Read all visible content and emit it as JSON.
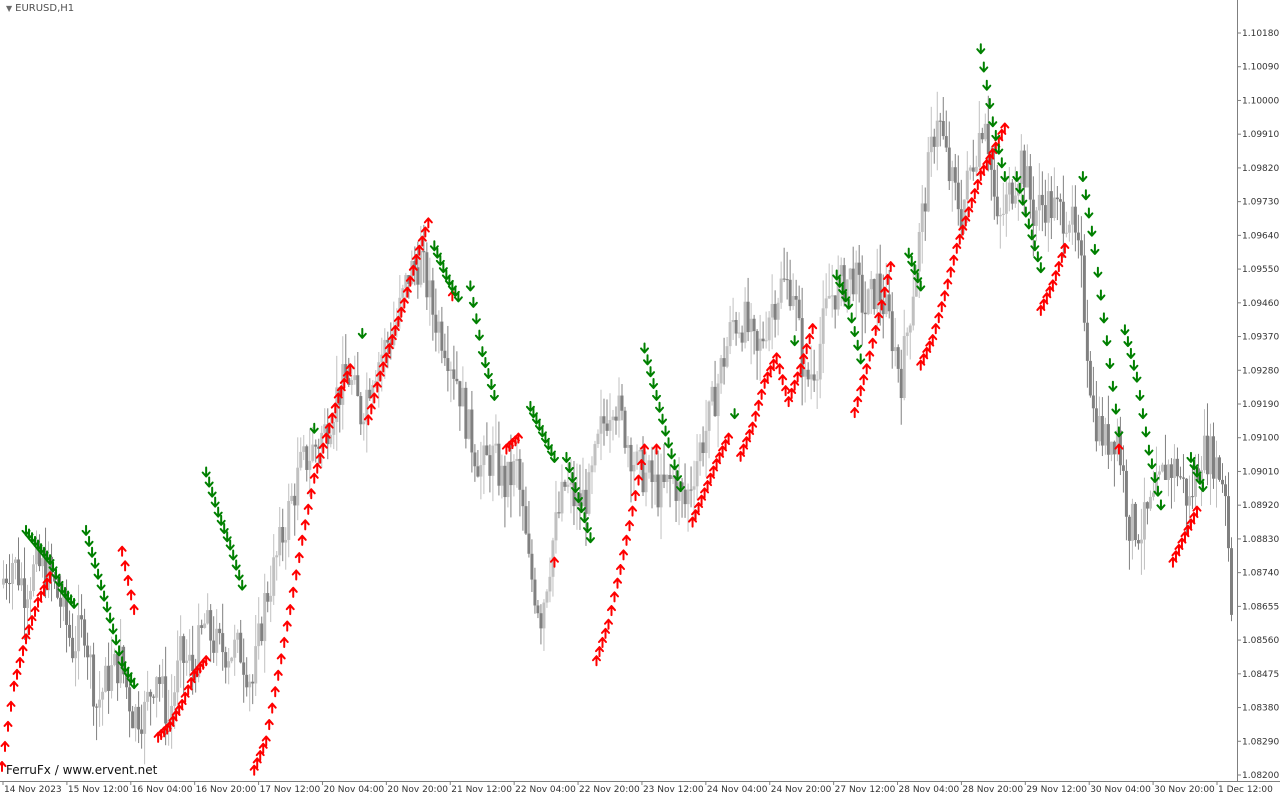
{
  "window": {
    "symbol_label": "EURUSD,H1",
    "watermark": "FerruFx / www.ervent.net"
  },
  "colors": {
    "background": "#ffffff",
    "bull_candle": "#c0c0c0",
    "bear_candle": "#808080",
    "buy_arrow": "#ff0000",
    "sell_arrow": "#008000",
    "axis": "#7f7f7f"
  },
  "chart_data": {
    "type": "candlestick",
    "symbol": "EURUSD",
    "timeframe": "H1",
    "y_axis": {
      "range": [
        1.082,
        1.1025
      ],
      "ticks": [
        "1.10180",
        "1.10090",
        "1.10000",
        "1.09910",
        "1.09820",
        "1.09730",
        "1.09640",
        "1.09550",
        "1.09460",
        "1.09370",
        "1.09280",
        "1.09190",
        "1.09100",
        "1.09010",
        "1.08920",
        "1.08830",
        "1.08740",
        "1.08655",
        "1.08560",
        "1.08475",
        "1.08380",
        "1.08290",
        "1.08200"
      ]
    },
    "x_axis": {
      "ticks": [
        "14 Nov 2023",
        "15 Nov 12:00",
        "16 Nov 04:00",
        "16 Nov 20:00",
        "17 Nov 12:00",
        "20 Nov 04:00",
        "20 Nov 20:00",
        "21 Nov 12:00",
        "22 Nov 04:00",
        "22 Nov 20:00",
        "23 Nov 12:00",
        "24 Nov 04:00",
        "24 Nov 20:00",
        "27 Nov 12:00",
        "28 Nov 04:00",
        "28 Nov 20:00",
        "29 Nov 12:00",
        "30 Nov 04:00",
        "30 Nov 20:00",
        "1 Dec 12:00"
      ]
    },
    "close_path": [
      [
        0,
        1.0873
      ],
      [
        4,
        1.088
      ],
      [
        8,
        1.0872
      ],
      [
        12,
        1.0878
      ],
      [
        16,
        1.0876
      ],
      [
        20,
        1.0868
      ],
      [
        24,
        1.0856
      ],
      [
        28,
        1.0862
      ],
      [
        32,
        1.084
      ],
      [
        36,
        1.0848
      ],
      [
        40,
        1.0852
      ],
      [
        44,
        1.0838
      ],
      [
        48,
        1.0838
      ],
      [
        52,
        1.085
      ],
      [
        56,
        1.0836
      ],
      [
        60,
        1.0853
      ],
      [
        64,
        1.085
      ],
      [
        68,
        1.0862
      ],
      [
        72,
        1.0856
      ],
      [
        76,
        1.0855
      ],
      [
        80,
        1.0855
      ],
      [
        84,
        1.0846
      ],
      [
        88,
        1.0868
      ],
      [
        92,
        1.088
      ],
      [
        96,
        1.0893
      ],
      [
        100,
        1.0905
      ],
      [
        104,
        1.091
      ],
      [
        108,
        1.0915
      ],
      [
        112,
        1.0925
      ],
      [
        116,
        1.093
      ],
      [
        120,
        1.092
      ],
      [
        124,
        1.0932
      ],
      [
        128,
        1.0938
      ],
      [
        132,
        1.0945
      ],
      [
        136,
        1.0958
      ],
      [
        140,
        1.0962
      ],
      [
        144,
        1.0948
      ],
      [
        148,
        1.094
      ],
      [
        152,
        1.093
      ],
      [
        156,
        1.0915
      ],
      [
        160,
        1.0905
      ],
      [
        164,
        1.0908
      ],
      [
        168,
        1.09
      ],
      [
        172,
        1.0905
      ],
      [
        176,
        1.0878
      ],
      [
        180,
        1.0865
      ],
      [
        184,
        1.0885
      ],
      [
        188,
        1.09
      ],
      [
        192,
        1.0895
      ],
      [
        196,
        1.0898
      ],
      [
        200,
        1.0915
      ],
      [
        204,
        1.0925
      ],
      [
        208,
        1.0915
      ],
      [
        212,
        1.0905
      ],
      [
        216,
        1.0902
      ],
      [
        220,
        1.0898
      ],
      [
        224,
        1.0902
      ],
      [
        228,
        1.0895
      ],
      [
        232,
        1.0908
      ],
      [
        236,
        1.0918
      ],
      [
        240,
        1.0932
      ],
      [
        244,
        1.0945
      ],
      [
        248,
        1.0945
      ],
      [
        252,
        1.0935
      ],
      [
        256,
        1.0948
      ],
      [
        260,
        1.0955
      ],
      [
        264,
        1.0955
      ],
      [
        268,
        1.0928
      ],
      [
        272,
        1.0935
      ],
      [
        276,
        1.0952
      ],
      [
        280,
        1.0955
      ],
      [
        284,
        1.0958
      ],
      [
        288,
        1.0948
      ],
      [
        292,
        1.0955
      ],
      [
        296,
        1.0945
      ],
      [
        300,
        1.093
      ],
      [
        304,
        1.0955
      ],
      [
        308,
        1.098
      ],
      [
        312,
        1.1003
      ],
      [
        316,
        1.0985
      ],
      [
        320,
        1.0975
      ],
      [
        324,
        1.099
      ],
      [
        328,
        1.1003
      ],
      [
        332,
        1.097
      ],
      [
        336,
        1.098
      ],
      [
        340,
        1.099
      ],
      [
        344,
        1.0975
      ],
      [
        348,
        1.0978
      ],
      [
        352,
        1.0975
      ],
      [
        356,
        1.0975
      ],
      [
        360,
        1.0958
      ],
      [
        364,
        1.092
      ],
      [
        368,
        1.0912
      ],
      [
        372,
        1.0915
      ],
      [
        376,
        1.089
      ],
      [
        380,
        1.0888
      ],
      [
        384,
        1.0895
      ],
      [
        388,
        1.0905
      ],
      [
        392,
        1.0905
      ],
      [
        396,
        1.0895
      ],
      [
        400,
        1.091
      ],
      [
        404,
        1.0908
      ],
      [
        408,
        1.09
      ],
      [
        410,
        1.0868
      ]
    ],
    "candle_count": 410,
    "indicator": {
      "buy_arrows_color": "red",
      "sell_arrows_color": "green",
      "buy_segments": [
        [
          [
            0,
            1.0823
          ],
          [
            4,
            1.0845
          ],
          [
            8,
            1.0858
          ],
          [
            12,
            1.0868
          ],
          [
            16,
            1.0875
          ]
        ],
        [
          [
            40,
            1.0882
          ],
          [
            44,
            1.0866
          ]
        ],
        [
          [
            52,
            1.0831
          ],
          [
            56,
            1.0834
          ],
          [
            60,
            1.084
          ],
          [
            64,
            1.0848
          ],
          [
            68,
            1.0852
          ]
        ],
        [
          [
            84,
            1.0822
          ],
          [
            88,
            1.083
          ],
          [
            92,
            1.0848
          ],
          [
            96,
            1.0866
          ],
          [
            100,
            1.0885
          ],
          [
            104,
            1.0902
          ],
          [
            108,
            1.0913
          ],
          [
            112,
            1.0924
          ],
          [
            116,
            1.0932
          ]
        ],
        [
          [
            122,
            1.0918
          ],
          [
            126,
            1.093
          ],
          [
            130,
            1.094
          ],
          [
            134,
            1.095
          ],
          [
            138,
            1.0962
          ],
          [
            142,
            1.0972
          ]
        ],
        [
          [
            150,
            1.0952
          ]
        ],
        [
          [
            168,
            1.091
          ],
          [
            172,
            1.0913
          ]
        ],
        [
          [
            184,
            1.0879
          ]
        ],
        [
          [
            198,
            1.0852
          ],
          [
            202,
            1.0862
          ],
          [
            206,
            1.0877
          ],
          [
            210,
            1.0893
          ],
          [
            214,
            1.091
          ]
        ],
        [
          [
            218,
            1.091
          ]
        ],
        [
          [
            230,
            1.089
          ],
          [
            234,
            1.0898
          ],
          [
            238,
            1.0906
          ],
          [
            242,
            1.0913
          ]
        ],
        [
          [
            246,
            1.0908
          ],
          [
            250,
            1.0916
          ],
          [
            254,
            1.0928
          ],
          [
            258,
            1.0935
          ],
          [
            262,
            1.0923
          ],
          [
            266,
            1.0932
          ],
          [
            270,
            1.0943
          ]
        ],
        [
          [
            284,
            1.092
          ],
          [
            288,
            1.0932
          ],
          [
            292,
            1.0946
          ],
          [
            296,
            1.096
          ]
        ],
        [
          [
            306,
            1.0933
          ],
          [
            310,
            1.094
          ],
          [
            314,
            1.0952
          ],
          [
            318,
            1.0965
          ],
          [
            322,
            1.0975
          ],
          [
            326,
            1.0985
          ],
          [
            330,
            1.0991
          ],
          [
            334,
            1.0998
          ]
        ],
        [
          [
            346,
            1.0948
          ],
          [
            350,
            1.0955
          ],
          [
            354,
            1.0965
          ]
        ],
        [
          [
            372,
            1.091
          ]
        ],
        [
          [
            390,
            1.0879
          ],
          [
            394,
            1.0886
          ],
          [
            398,
            1.0893
          ]
        ]
      ],
      "sell_segments": [
        [
          [
            8,
            1.0888
          ],
          [
            12,
            1.0884
          ],
          [
            16,
            1.088
          ],
          [
            20,
            1.0872
          ],
          [
            24,
            1.0868
          ]
        ],
        [
          [
            28,
            1.0888
          ],
          [
            32,
            1.0876
          ],
          [
            36,
            1.0864
          ],
          [
            40,
            1.0852
          ],
          [
            44,
            1.0846
          ]
        ],
        [
          [
            68,
            1.0904
          ],
          [
            72,
            1.0893
          ],
          [
            76,
            1.0884
          ],
          [
            80,
            1.0873
          ]
        ],
        [
          [
            104,
            1.0916
          ]
        ],
        [
          [
            120,
            1.0942
          ]
        ],
        [
          [
            144,
            1.0966
          ],
          [
            148,
            1.0958
          ],
          [
            152,
            1.0952
          ]
        ],
        [
          [
            156,
            1.0955
          ],
          [
            160,
            1.0937
          ],
          [
            164,
            1.0925
          ]
        ],
        [
          [
            176,
            1.0922
          ],
          [
            180,
            1.0915
          ],
          [
            184,
            1.0908
          ]
        ],
        [
          [
            188,
            1.0908
          ],
          [
            192,
            1.0897
          ],
          [
            196,
            1.0886
          ]
        ],
        [
          [
            214,
            1.0938
          ],
          [
            218,
            1.0925
          ],
          [
            222,
            1.0912
          ],
          [
            226,
            1.09
          ]
        ],
        [
          [
            244,
            1.092
          ]
        ],
        [
          [
            264,
            1.094
          ]
        ],
        [
          [
            278,
            1.0958
          ],
          [
            282,
            1.095
          ],
          [
            286,
            1.0935
          ]
        ],
        [
          [
            302,
            1.0964
          ],
          [
            306,
            1.0955
          ]
        ],
        [
          [
            326,
            1.102
          ],
          [
            330,
            1.1
          ],
          [
            334,
            1.0985
          ]
        ],
        [
          [
            338,
            1.0985
          ],
          [
            342,
            1.0972
          ],
          [
            346,
            1.096
          ]
        ],
        [
          [
            360,
            1.0985
          ],
          [
            364,
            1.0965
          ],
          [
            368,
            1.094
          ],
          [
            372,
            1.0915
          ]
        ],
        [
          [
            374,
            1.0943
          ],
          [
            378,
            1.093
          ],
          [
            382,
            1.091
          ],
          [
            386,
            1.0895
          ]
        ],
        [
          [
            396,
            1.0908
          ],
          [
            400,
            1.09
          ]
        ]
      ]
    }
  }
}
